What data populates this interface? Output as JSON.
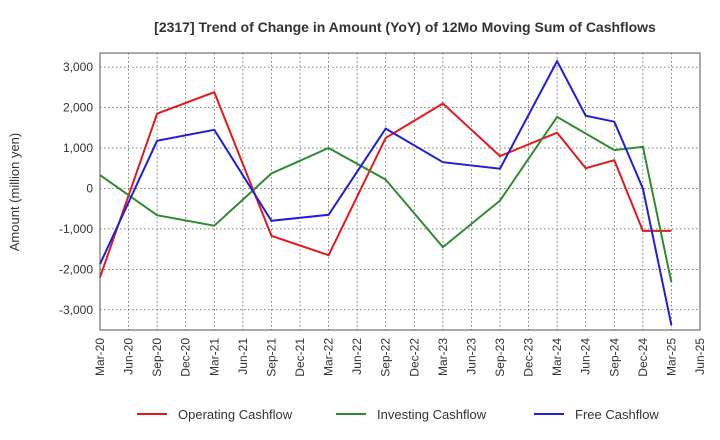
{
  "chart_data": {
    "type": "line",
    "title": "[2317]  Trend of Change in Amount (YoY) of 12Mo Moving Sum of Cashflows",
    "xlabel": "",
    "ylabel": "Amount (million yen)",
    "ylim": [
      -3500,
      3350
    ],
    "yticks": [
      3000,
      2000,
      1000,
      0,
      -1000,
      -2000,
      -3000
    ],
    "ytick_labels": [
      "3,000",
      "2,000",
      "1,000",
      "0",
      "-1,000",
      "-2,000",
      "-3,000"
    ],
    "categories": [
      "Mar-20",
      "Jun-20",
      "Sep-20",
      "Dec-20",
      "Mar-21",
      "Jun-21",
      "Sep-21",
      "Dec-21",
      "Mar-22",
      "Jun-22",
      "Sep-22",
      "Dec-22",
      "Mar-23",
      "Jun-23",
      "Sep-23",
      "Dec-23",
      "Mar-24",
      "Jun-24",
      "Sep-24",
      "Dec-24",
      "Mar-25",
      "Jun-25"
    ],
    "grid": true,
    "legend_position": "bottom",
    "series": [
      {
        "name": "Operating Cashflow",
        "color": "#e31a1c",
        "values": [
          -2200,
          null,
          1850,
          null,
          2380,
          null,
          -1170,
          null,
          -1650,
          null,
          1250,
          null,
          2100,
          null,
          800,
          null,
          1380,
          500,
          700,
          -1050,
          -1050,
          null
        ]
      },
      {
        "name": "Investing Cashflow",
        "color": "#2e8b2e",
        "values": [
          330,
          null,
          -660,
          null,
          -920,
          null,
          370,
          null,
          1000,
          null,
          220,
          null,
          -1450,
          null,
          -300,
          null,
          1770,
          null,
          950,
          1030,
          -2320,
          null
        ]
      },
      {
        "name": "Free Cashflow",
        "color": "#1f1fd6",
        "values": [
          -1870,
          null,
          1180,
          null,
          1450,
          null,
          -800,
          null,
          -650,
          null,
          1480,
          null,
          650,
          null,
          490,
          null,
          3150,
          1800,
          1650,
          0,
          -3380,
          null
        ]
      }
    ]
  }
}
